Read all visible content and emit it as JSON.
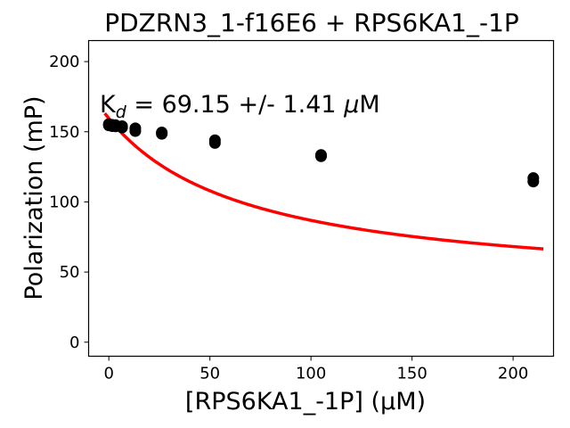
{
  "chart_data": {
    "type": "scatter",
    "title": "PDZRN3_1-f16E6 + RPS6KA1_-1P",
    "xlabel": "[RPS6KA1_-1P] (µM)",
    "ylabel": "Polarization (mP)",
    "xlim": [
      -10,
      220
    ],
    "ylim": [
      -10,
      215
    ],
    "xticks": [
      0,
      50,
      100,
      150,
      200
    ],
    "yticks": [
      0,
      50,
      100,
      150,
      200
    ],
    "annotation": {
      "prefix": "K",
      "subscript": "d",
      "text": " = 69.15 +/- 1.41 ",
      "mu": "μ",
      "unit": "M"
    },
    "grid": false,
    "legend": "none",
    "points": [
      {
        "x": 0,
        "y": 154.5
      },
      {
        "x": 0,
        "y": 155.5
      },
      {
        "x": 1.64,
        "y": 154.0
      },
      {
        "x": 1.64,
        "y": 155.0
      },
      {
        "x": 3.28,
        "y": 153.8
      },
      {
        "x": 3.28,
        "y": 154.8
      },
      {
        "x": 6.56,
        "y": 153.0
      },
      {
        "x": 6.56,
        "y": 154.0
      },
      {
        "x": 13.1,
        "y": 150.5
      },
      {
        "x": 13.1,
        "y": 152.5
      },
      {
        "x": 26.2,
        "y": 148.5
      },
      {
        "x": 26.2,
        "y": 149.5
      },
      {
        "x": 52.5,
        "y": 142.0
      },
      {
        "x": 52.5,
        "y": 144.0
      },
      {
        "x": 105,
        "y": 132.5
      },
      {
        "x": 105,
        "y": 133.5
      },
      {
        "x": 210,
        "y": 114.5
      },
      {
        "x": 210,
        "y": 117.0
      }
    ],
    "fit": {
      "type": "binding_curve",
      "kd": 69.15,
      "top": 159.5,
      "bottom": 36.6,
      "x_range": [
        -2,
        215
      ],
      "color": "#ff0000"
    },
    "point_color": "#000000"
  }
}
